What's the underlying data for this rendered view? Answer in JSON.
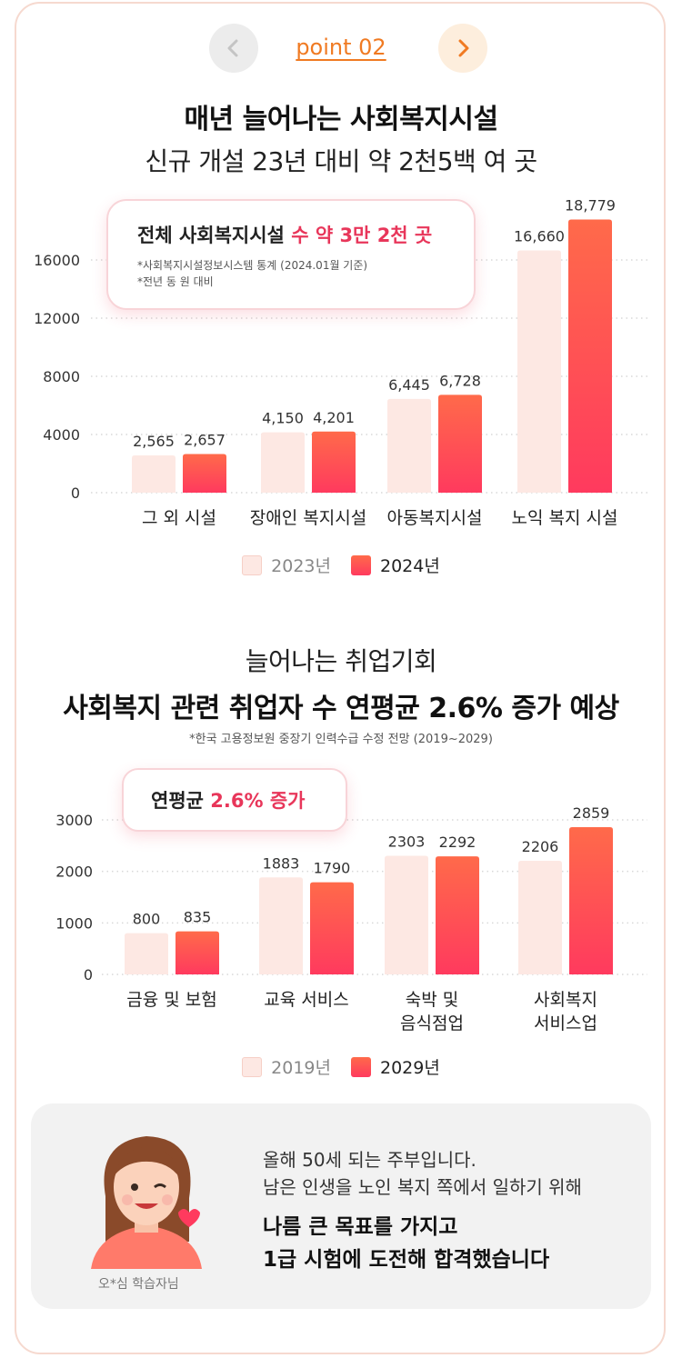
{
  "header": {
    "point_label": "point 02",
    "prev_icon": "chevron-left-icon",
    "next_icon": "chevron-right-icon"
  },
  "section1": {
    "title": "매년 늘어나는 사회복지시설",
    "subtitle": "신규 개설 23년 대비 약 2천5백 여 곳",
    "callout": {
      "title_plain": "전체 사회복지시설 ",
      "title_highlight": "수 약 3만 2천 곳",
      "note1": "*사회복지시설정보시스템 통계 (2024.01월 기준)",
      "note2": "*전년 동 원 대비"
    },
    "legend": [
      "2023년",
      "2024년"
    ]
  },
  "section2": {
    "title1": "늘어나는 취업기회",
    "title2": "사회복지 관련 취업자 수 연평균 2.6% 증가 예상",
    "note": "*한국 고용정보원 중장기 인력수급 수정 전망 (2019~2029)",
    "callout": {
      "title_plain": "연평균 ",
      "title_highlight": "2.6% 증가"
    },
    "legend": [
      "2019년",
      "2029년"
    ]
  },
  "review": {
    "line1": "올해 50세 되는 주부입니다.",
    "line2": "남은 인생을 노인 복지 쪽에서 일하기 위해",
    "line3": "나름 큰 목표를 가지고",
    "line4": "1급 시험에 도전해 합격했습니다",
    "name": "오*심 학습자님"
  },
  "colors": {
    "accent": "#f07a22",
    "bar_old": "#fde8e3",
    "bar_new_top": "#ff6a4a",
    "bar_new_bottom": "#ff3a5e",
    "highlight": "#e8365a"
  },
  "chart_data": [
    {
      "type": "bar",
      "categories": [
        "그 외 시설",
        "장애인 복지시설",
        "아동복지시설",
        "노익 복지 시설"
      ],
      "series": [
        {
          "name": "2023년",
          "values": [
            2565,
            4150,
            6445,
            16660
          ],
          "labels": [
            "2,565",
            "4,150",
            "6,445",
            "16,660"
          ]
        },
        {
          "name": "2024년",
          "values": [
            2657,
            4201,
            6728,
            18779
          ],
          "labels": [
            "2,657",
            "4,201",
            "6,728",
            "18,779"
          ]
        }
      ],
      "yticks": [
        0,
        4000,
        8000,
        12000,
        16000
      ],
      "ylim": [
        0,
        20000
      ],
      "grid": true
    },
    {
      "type": "bar",
      "categories": [
        [
          "금융 및 보험"
        ],
        [
          "교육 서비스"
        ],
        [
          "숙박 및",
          "음식점업"
        ],
        [
          "사회복지",
          "서비스업"
        ]
      ],
      "series": [
        {
          "name": "2019년",
          "values": [
            800,
            1883,
            2303,
            2206
          ],
          "labels": [
            "800",
            "1883",
            "2303",
            "2206"
          ]
        },
        {
          "name": "2029년",
          "values": [
            835,
            1790,
            2292,
            2859
          ],
          "labels": [
            "835",
            "1790",
            "2292",
            "2859"
          ]
        }
      ],
      "yticks": [
        0,
        1000,
        2000,
        3000
      ],
      "ylim": [
        0,
        3000
      ],
      "grid": true
    }
  ]
}
